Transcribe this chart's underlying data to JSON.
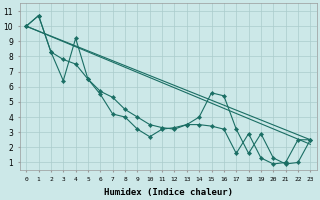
{
  "xlabel": "Humidex (Indice chaleur)",
  "background_color": "#cce8e8",
  "grid_color": "#aacccc",
  "line_color": "#1a6e64",
  "xlim": [
    -0.5,
    23.5
  ],
  "ylim": [
    0.5,
    11.5
  ],
  "yticks": [
    1,
    2,
    3,
    4,
    5,
    6,
    7,
    8,
    9,
    10,
    11
  ],
  "xticks": [
    0,
    1,
    2,
    3,
    4,
    5,
    6,
    7,
    8,
    9,
    10,
    11,
    12,
    13,
    14,
    15,
    16,
    17,
    18,
    19,
    20,
    21,
    22,
    23
  ],
  "series1_x": [
    0,
    1,
    2,
    3,
    4,
    5,
    6,
    7,
    8,
    9,
    10,
    11,
    12,
    13,
    14,
    15,
    16,
    17,
    18,
    19,
    20,
    21,
    22,
    23
  ],
  "series1_y": [
    10.0,
    10.7,
    8.3,
    6.4,
    9.2,
    6.5,
    5.5,
    4.2,
    4.0,
    3.2,
    2.7,
    3.2,
    3.3,
    3.5,
    4.0,
    5.6,
    5.4,
    3.2,
    1.6,
    2.9,
    1.3,
    0.9,
    1.0,
    2.5
  ],
  "series2_x": [
    0,
    1,
    2,
    3,
    4,
    5,
    6,
    7,
    8,
    9,
    10,
    11,
    12,
    13,
    14,
    15,
    16,
    17,
    18,
    19,
    20,
    21,
    22,
    23
  ],
  "series2_y": [
    10.0,
    10.7,
    8.3,
    7.8,
    7.5,
    6.5,
    5.7,
    5.3,
    4.5,
    4.0,
    3.5,
    3.3,
    3.2,
    3.5,
    3.5,
    3.4,
    3.2,
    1.6,
    2.9,
    1.3,
    0.9,
    1.0,
    2.5,
    2.5
  ],
  "trend1_x": [
    0,
    23
  ],
  "trend1_y": [
    10.0,
    2.5
  ],
  "trend2_x": [
    0,
    23
  ],
  "trend2_y": [
    10.0,
    2.5
  ]
}
